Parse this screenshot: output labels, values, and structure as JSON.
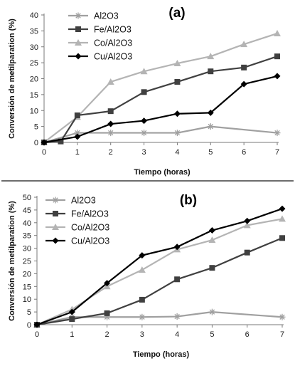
{
  "chart_data": [
    {
      "type": "line",
      "panel_label": "(a)",
      "xlabel": "Tiempo (horas)",
      "ylabel": "Conversión de metilparation (%)",
      "x": [
        0,
        1,
        2,
        3,
        4,
        5,
        6,
        7
      ],
      "xlim": [
        0,
        7
      ],
      "ylim": [
        0,
        40
      ],
      "yticks": [
        0,
        5,
        10,
        15,
        20,
        25,
        30,
        35,
        40
      ],
      "grid": false,
      "legend_position": "top-left",
      "series": [
        {
          "name": "Al2O3",
          "marker": "star",
          "color": "#a0a0a0",
          "x": [
            0,
            1,
            2,
            3,
            4,
            5,
            7
          ],
          "values": [
            0,
            3,
            3,
            3,
            3,
            5,
            3
          ]
        },
        {
          "name": "Fe/Al2O3",
          "marker": "square",
          "color": "#404040",
          "x": [
            0,
            0.5,
            1,
            2,
            3,
            4,
            5,
            6,
            7
          ],
          "values": [
            0,
            0.3,
            8.5,
            9.8,
            15.8,
            19,
            22.3,
            23.5,
            27
          ]
        },
        {
          "name": "Co/Al2O3",
          "marker": "triangle",
          "color": "#b4b4b4",
          "x": [
            0,
            1,
            2,
            3,
            4,
            5,
            6,
            7
          ],
          "values": [
            0,
            8,
            19,
            22.3,
            24.8,
            27,
            30.8,
            34.2
          ]
        },
        {
          "name": "Cu/Al2O3",
          "marker": "diamond",
          "color": "#000000",
          "x": [
            0,
            1,
            2,
            3,
            4,
            5,
            6,
            7
          ],
          "values": [
            0,
            1.8,
            5.8,
            6.8,
            9,
            9.3,
            18.3,
            20.8
          ]
        }
      ]
    },
    {
      "type": "line",
      "panel_label": "(b)",
      "xlabel": "Tiempo (horas)",
      "ylabel": "Conversión de metilparation (%)",
      "x": [
        0,
        1,
        2,
        3,
        4,
        5,
        6,
        7
      ],
      "xlim": [
        0,
        7
      ],
      "ylim": [
        0,
        50
      ],
      "yticks": [
        0,
        5,
        10,
        15,
        20,
        25,
        30,
        35,
        40,
        45,
        50
      ],
      "grid": false,
      "legend_position": "top-left",
      "series": [
        {
          "name": "Al2O3",
          "marker": "star",
          "color": "#a0a0a0",
          "x": [
            0,
            1,
            2,
            3,
            4,
            5,
            7
          ],
          "values": [
            0,
            3,
            3,
            3,
            3.2,
            5,
            3
          ]
        },
        {
          "name": "Fe/Al2O3",
          "marker": "square",
          "color": "#404040",
          "x": [
            0,
            1,
            2,
            3,
            4,
            5,
            6,
            7
          ],
          "values": [
            0,
            2.2,
            4.5,
            9.8,
            17.8,
            22.3,
            28.3,
            34
          ]
        },
        {
          "name": "Co/Al2O3",
          "marker": "triangle",
          "color": "#b4b4b4",
          "x": [
            0,
            1,
            2,
            3,
            4,
            5,
            6,
            7
          ],
          "values": [
            0,
            6,
            15,
            21.5,
            29.5,
            33.2,
            39,
            41.5
          ]
        },
        {
          "name": "Cu/Al2O3",
          "marker": "diamond",
          "color": "#000000",
          "x": [
            0,
            1,
            2,
            3,
            4,
            5,
            6,
            7
          ],
          "values": [
            0,
            5,
            16.3,
            27.2,
            30.5,
            37,
            40.7,
            45.5
          ]
        }
      ]
    }
  ]
}
